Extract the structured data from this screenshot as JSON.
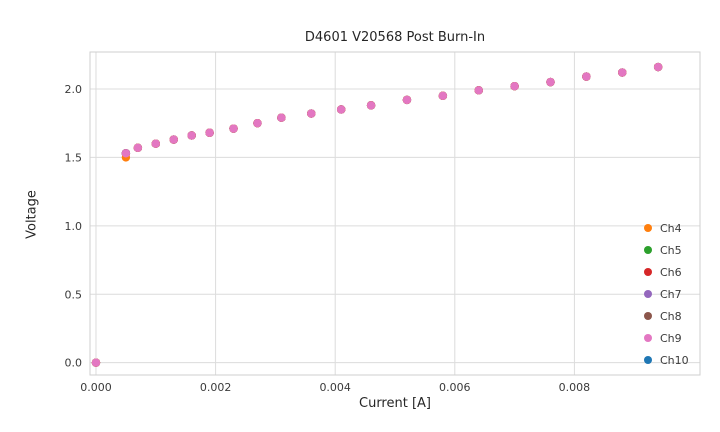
{
  "chart_data": {
    "type": "scatter",
    "title": "D4601 V20568 Post Burn-In",
    "xlabel": "Current [A]",
    "ylabel": "Voltage",
    "xlim": [
      -0.0001,
      0.0101
    ],
    "ylim": [
      -0.09,
      2.27
    ],
    "grid": true,
    "legend_position": "lower right",
    "xticks": [
      {
        "v": 0.0,
        "label": "0.000"
      },
      {
        "v": 0.002,
        "label": "0.002"
      },
      {
        "v": 0.004,
        "label": "0.004"
      },
      {
        "v": 0.006,
        "label": "0.006"
      },
      {
        "v": 0.008,
        "label": "0.008"
      }
    ],
    "yticks": [
      {
        "v": 0.0,
        "label": "0.0"
      },
      {
        "v": 0.5,
        "label": "0.5"
      },
      {
        "v": 1.0,
        "label": "1.0"
      },
      {
        "v": 1.5,
        "label": "1.5"
      },
      {
        "v": 2.0,
        "label": "2.0"
      }
    ],
    "x": [
      0.0,
      0.0005,
      0.0007,
      0.001,
      0.0013,
      0.0016,
      0.0019,
      0.0023,
      0.0027,
      0.0031,
      0.0036,
      0.0041,
      0.0046,
      0.0052,
      0.0058,
      0.0064,
      0.007,
      0.0076,
      0.0082,
      0.0088,
      0.0094
    ],
    "series": [
      {
        "name": "Ch4",
        "color": "#ff7f0e",
        "y": [
          0.0,
          1.5,
          1.57,
          1.6,
          1.63,
          1.66,
          1.68,
          1.71,
          1.75,
          1.79,
          1.82,
          1.85,
          1.88,
          1.92,
          1.95,
          1.99,
          2.02,
          2.05,
          2.09,
          2.12,
          2.16
        ]
      },
      {
        "name": "Ch5",
        "color": "#2ca02c",
        "y_same_as": "Ch9"
      },
      {
        "name": "Ch6",
        "color": "#d62728",
        "y_same_as": "Ch9"
      },
      {
        "name": "Ch7",
        "color": "#9467bd",
        "y_same_as": "Ch9"
      },
      {
        "name": "Ch8",
        "color": "#8c564b",
        "y_same_as": "Ch9"
      },
      {
        "name": "Ch9",
        "color": "#e377c2",
        "y": [
          0.0,
          1.53,
          1.57,
          1.6,
          1.63,
          1.66,
          1.68,
          1.71,
          1.75,
          1.79,
          1.82,
          1.85,
          1.88,
          1.92,
          1.95,
          1.99,
          2.02,
          2.05,
          2.09,
          2.12,
          2.16
        ]
      },
      {
        "name": "Ch10",
        "color": "#1f77b4",
        "y_same_as": "Ch9"
      }
    ],
    "draw_order": [
      "Ch10",
      "Ch5",
      "Ch6",
      "Ch7",
      "Ch8",
      "Ch4",
      "Ch9"
    ]
  }
}
